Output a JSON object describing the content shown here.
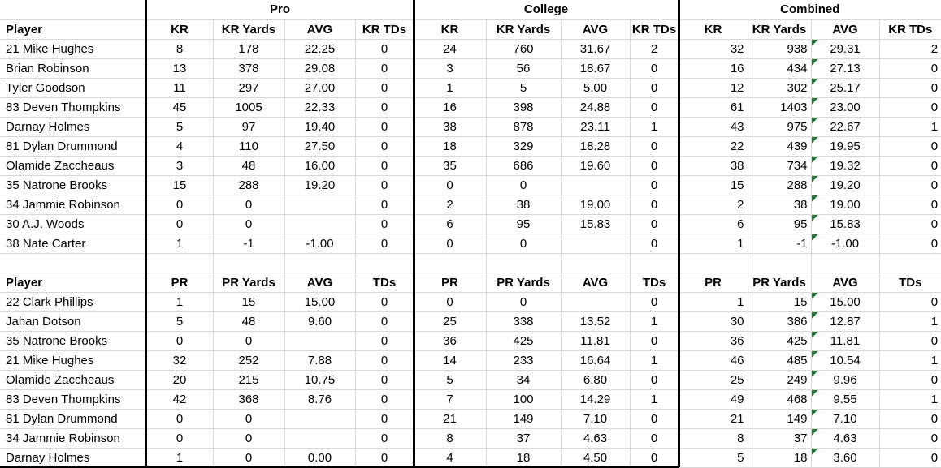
{
  "section_headers": [
    "Pro",
    "College",
    "Combined"
  ],
  "colors": {
    "grid_line": "#d8d8d8",
    "section_border": "#000000",
    "error_indicator_green": "#1f7d32",
    "text": "#000000",
    "background": "#ffffff"
  },
  "icons": [
    {
      "name": "error-indicator-icon",
      "description": "small green triangle in top-left corner of Combined AVG cells"
    }
  ],
  "tables": [
    {
      "id": "kick-returns",
      "player_header": "Player",
      "stat_columns": [
        "KR",
        "KR Yards",
        "AVG",
        "KR TDs"
      ],
      "rows": [
        {
          "player": "21 Mike Hughes",
          "pro": [
            "8",
            "178",
            "22.25",
            "0"
          ],
          "college": [
            "24",
            "760",
            "31.67",
            "2"
          ],
          "combined": [
            "32",
            "938",
            "29.31",
            "2"
          ]
        },
        {
          "player": "Brian Robinson",
          "pro": [
            "13",
            "378",
            "29.08",
            "0"
          ],
          "college": [
            "3",
            "56",
            "18.67",
            "0"
          ],
          "combined": [
            "16",
            "434",
            "27.13",
            "0"
          ]
        },
        {
          "player": "Tyler Goodson",
          "pro": [
            "11",
            "297",
            "27.00",
            "0"
          ],
          "college": [
            "1",
            "5",
            "5.00",
            "0"
          ],
          "combined": [
            "12",
            "302",
            "25.17",
            "0"
          ]
        },
        {
          "player": "83 Deven Thompkins",
          "pro": [
            "45",
            "1005",
            "22.33",
            "0"
          ],
          "college": [
            "16",
            "398",
            "24.88",
            "0"
          ],
          "combined": [
            "61",
            "1403",
            "23.00",
            "0"
          ]
        },
        {
          "player": "Darnay Holmes",
          "pro": [
            "5",
            "97",
            "19.40",
            "0"
          ],
          "college": [
            "38",
            "878",
            "23.11",
            "1"
          ],
          "combined": [
            "43",
            "975",
            "22.67",
            "1"
          ]
        },
        {
          "player": "81 Dylan Drummond",
          "pro": [
            "4",
            "110",
            "27.50",
            "0"
          ],
          "college": [
            "18",
            "329",
            "18.28",
            "0"
          ],
          "combined": [
            "22",
            "439",
            "19.95",
            "0"
          ]
        },
        {
          "player": "Olamide Zaccheaus",
          "pro": [
            "3",
            "48",
            "16.00",
            "0"
          ],
          "college": [
            "35",
            "686",
            "19.60",
            "0"
          ],
          "combined": [
            "38",
            "734",
            "19.32",
            "0"
          ]
        },
        {
          "player": "35 Natrone Brooks",
          "pro": [
            "15",
            "288",
            "19.20",
            "0"
          ],
          "college": [
            "0",
            "0",
            "",
            "0"
          ],
          "combined": [
            "15",
            "288",
            "19.20",
            "0"
          ]
        },
        {
          "player": "34 Jammie Robinson",
          "pro": [
            "0",
            "0",
            "",
            "0"
          ],
          "college": [
            "2",
            "38",
            "19.00",
            "0"
          ],
          "combined": [
            "2",
            "38",
            "19.00",
            "0"
          ]
        },
        {
          "player": "30 A.J. Woods",
          "pro": [
            "0",
            "0",
            "",
            "0"
          ],
          "college": [
            "6",
            "95",
            "15.83",
            "0"
          ],
          "combined": [
            "6",
            "95",
            "15.83",
            "0"
          ]
        },
        {
          "player": "38 Nate Carter",
          "pro": [
            "1",
            "-1",
            "-1.00",
            "0"
          ],
          "college": [
            "0",
            "0",
            "",
            "0"
          ],
          "combined": [
            "1",
            "-1",
            "-1.00",
            "0"
          ]
        }
      ]
    },
    {
      "id": "punt-returns",
      "player_header": "Player",
      "stat_columns": [
        "PR",
        "PR Yards",
        "AVG",
        "TDs"
      ],
      "rows": [
        {
          "player": "22 Clark Phillips",
          "pro": [
            "1",
            "15",
            "15.00",
            "0"
          ],
          "college": [
            "0",
            "0",
            "",
            "0"
          ],
          "combined": [
            "1",
            "15",
            "15.00",
            "0"
          ]
        },
        {
          "player": "Jahan Dotson",
          "pro": [
            "5",
            "48",
            "9.60",
            "0"
          ],
          "college": [
            "25",
            "338",
            "13.52",
            "1"
          ],
          "combined": [
            "30",
            "386",
            "12.87",
            "1"
          ]
        },
        {
          "player": "35 Natrone Brooks",
          "pro": [
            "0",
            "0",
            "",
            "0"
          ],
          "college": [
            "36",
            "425",
            "11.81",
            "0"
          ],
          "combined": [
            "36",
            "425",
            "11.81",
            "0"
          ]
        },
        {
          "player": "21 Mike Hughes",
          "pro": [
            "32",
            "252",
            "7.88",
            "0"
          ],
          "college": [
            "14",
            "233",
            "16.64",
            "1"
          ],
          "combined": [
            "46",
            "485",
            "10.54",
            "1"
          ]
        },
        {
          "player": "Olamide Zaccheaus",
          "pro": [
            "20",
            "215",
            "10.75",
            "0"
          ],
          "college": [
            "5",
            "34",
            "6.80",
            "0"
          ],
          "combined": [
            "25",
            "249",
            "9.96",
            "0"
          ]
        },
        {
          "player": "83 Deven Thompkins",
          "pro": [
            "42",
            "368",
            "8.76",
            "0"
          ],
          "college": [
            "7",
            "100",
            "14.29",
            "1"
          ],
          "combined": [
            "49",
            "468",
            "9.55",
            "1"
          ]
        },
        {
          "player": "81 Dylan Drummond",
          "pro": [
            "0",
            "0",
            "",
            "0"
          ],
          "college": [
            "21",
            "149",
            "7.10",
            "0"
          ],
          "combined": [
            "21",
            "149",
            "7.10",
            "0"
          ]
        },
        {
          "player": "34 Jammie Robinson",
          "pro": [
            "0",
            "0",
            "",
            "0"
          ],
          "college": [
            "8",
            "37",
            "4.63",
            "0"
          ],
          "combined": [
            "8",
            "37",
            "4.63",
            "0"
          ]
        },
        {
          "player": "Darnay Holmes",
          "pro": [
            "1",
            "0",
            "0.00",
            "0"
          ],
          "college": [
            "4",
            "18",
            "4.50",
            "0"
          ],
          "combined": [
            "5",
            "18",
            "3.60",
            "0"
          ]
        }
      ]
    }
  ]
}
